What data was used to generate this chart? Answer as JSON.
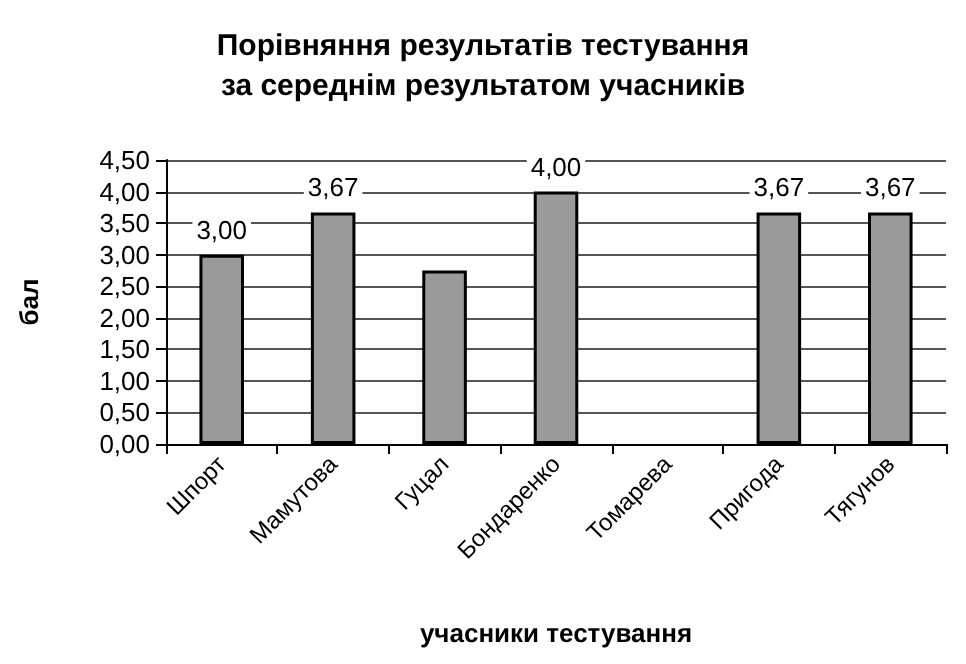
{
  "chart_data": {
    "type": "bar",
    "title": "Порівняння результатів тестування\nза середнім результатом учасників",
    "xlabel": "учасники тестування",
    "ylabel": "бал",
    "categories": [
      "Шпорт",
      "Мамутова",
      "Гуцал",
      "Бондаренко",
      "Томарева",
      "Пригода",
      "Тягунов"
    ],
    "values": [
      3.0,
      3.67,
      2.75,
      4.0,
      null,
      3.67,
      3.67
    ],
    "value_labels": [
      "3,00",
      "3,67",
      null,
      "4,00",
      null,
      "3,67",
      "3,67"
    ],
    "color": "#9a9a9a",
    "ylim": [
      0,
      4.5
    ],
    "yticks": [
      {
        "value": 0,
        "label": "0,00"
      },
      {
        "value": 0.5,
        "label": "0,50"
      },
      {
        "value": 1,
        "label": "1,00"
      },
      {
        "value": 1.5,
        "label": "1,50"
      },
      {
        "value": 2,
        "label": "2,00"
      },
      {
        "value": 2.5,
        "label": "2,50"
      },
      {
        "value": 3,
        "label": "3,00"
      },
      {
        "value": 3.5,
        "label": "3,50"
      },
      {
        "value": 4,
        "label": "4,00"
      },
      {
        "value": 4.5,
        "label": "4,50"
      }
    ],
    "grid": "y"
  }
}
